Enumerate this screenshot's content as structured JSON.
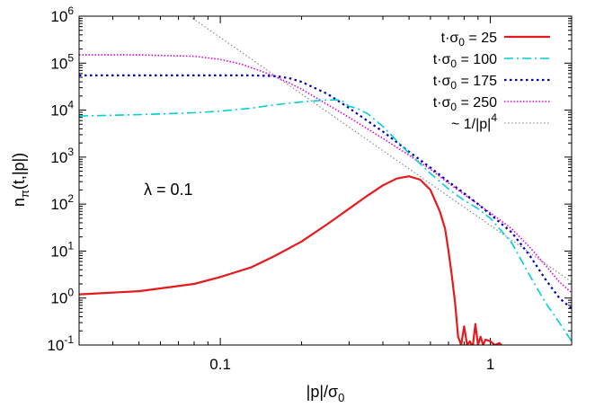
{
  "chart_data": {
    "type": "line",
    "xscale": "log",
    "yscale": "log",
    "xlim": [
      0.03,
      2.0
    ],
    "ylim": [
      0.1,
      1000000
    ],
    "xlabel": {
      "base": "|p|/σ",
      "sub": "0"
    },
    "ylabel": {
      "base": "n",
      "sub": "π",
      "rest": "(t,|p|)"
    },
    "x_ticks": [
      {
        "value": 0.1,
        "label": "0.1"
      },
      {
        "value": 1,
        "label": "1"
      }
    ],
    "y_ticks": [
      {
        "value": 0.1,
        "base": "10",
        "exp": "-1"
      },
      {
        "value": 1,
        "base": "10",
        "exp": "0"
      },
      {
        "value": 10,
        "base": "10",
        "exp": "1"
      },
      {
        "value": 100,
        "base": "10",
        "exp": "2"
      },
      {
        "value": 1000,
        "base": "10",
        "exp": "3"
      },
      {
        "value": 10000,
        "base": "10",
        "exp": "4"
      },
      {
        "value": 100000,
        "base": "10",
        "exp": "5"
      },
      {
        "value": 1000000,
        "base": "10",
        "exp": "6"
      }
    ],
    "annotation": "λ = 0.1",
    "legend_position": "top-right",
    "grid": false,
    "series": [
      {
        "legend": {
          "pre": "t·σ",
          "sub": "0",
          "post": " = 25"
        },
        "color": "#e41a1c",
        "style": "solid",
        "x": [
          0.03,
          0.05,
          0.08,
          0.1,
          0.13,
          0.16,
          0.2,
          0.25,
          0.3,
          0.35,
          0.4,
          0.45,
          0.5,
          0.55,
          0.6,
          0.65,
          0.68,
          0.7,
          0.72,
          0.74,
          0.76,
          0.78,
          0.8,
          0.82,
          0.84,
          0.86,
          0.88,
          0.9,
          0.92,
          0.94,
          0.96,
          1.0,
          1.04,
          1.08,
          1.1
        ],
        "y": [
          1.2,
          1.4,
          2.0,
          2.8,
          4.5,
          8,
          16,
          38,
          80,
          150,
          250,
          350,
          390,
          330,
          200,
          70,
          30,
          10,
          3,
          0.8,
          0.15,
          0.1,
          0.25,
          0.1,
          0.12,
          0.09,
          0.28,
          0.1,
          0.15,
          0.1,
          0.13,
          0.12,
          0.1,
          0.11,
          0.1
        ]
      },
      {
        "legend": {
          "pre": "t·σ",
          "sub": "0",
          "post": " = 100"
        },
        "color": "#00cfd6",
        "style": "dashdot",
        "x": [
          0.03,
          0.05,
          0.08,
          0.1,
          0.13,
          0.16,
          0.2,
          0.25,
          0.28,
          0.3,
          0.32,
          0.35,
          0.4,
          0.5,
          0.6,
          0.7,
          0.8,
          0.9,
          1.0,
          1.2,
          1.4,
          1.6,
          1.8,
          2.0
        ],
        "y": [
          7500,
          8000,
          8800,
          9500,
          11000,
          13000,
          15000,
          16500,
          16500,
          12000,
          11000,
          8500,
          4500,
          1200,
          450,
          210,
          120,
          80,
          50,
          15,
          3,
          0.8,
          0.3,
          0.12
        ]
      },
      {
        "legend": {
          "pre": "t·σ",
          "sub": "0",
          "post": " = 175"
        },
        "color": "#0000b4",
        "style": "dotted",
        "x": [
          0.03,
          0.05,
          0.08,
          0.1,
          0.13,
          0.16,
          0.18,
          0.2,
          0.25,
          0.3,
          0.4,
          0.5,
          0.6,
          0.7,
          0.8,
          0.9,
          1.0,
          1.2,
          1.4,
          1.6,
          1.8,
          2.0
        ],
        "y": [
          55000,
          55000,
          55000,
          55000,
          55000,
          53000,
          48000,
          40000,
          22000,
          11000,
          3500,
          1300,
          600,
          300,
          170,
          100,
          60,
          25,
          8,
          2.5,
          1.0,
          0.6
        ]
      },
      {
        "legend": {
          "pre": "t·σ",
          "sub": "0",
          "post": " = 250"
        },
        "color": "#e000e0",
        "style": "dotted-fine",
        "x": [
          0.03,
          0.05,
          0.08,
          0.1,
          0.12,
          0.15,
          0.18,
          0.2,
          0.25,
          0.3,
          0.4,
          0.5,
          0.6,
          0.7,
          0.8,
          0.9,
          1.0,
          1.2,
          1.4,
          1.6,
          1.8,
          2.0
        ],
        "y": [
          150000,
          150000,
          140000,
          120000,
          95000,
          60000,
          38000,
          28000,
          13000,
          7000,
          2500,
          1100,
          550,
          280,
          160,
          100,
          65,
          30,
          12,
          5,
          2.2,
          1.3
        ]
      },
      {
        "legend": {
          "pre": "~ 1/|p|",
          "sup": "4"
        },
        "color": "#808080",
        "style": "fine-dot",
        "x": [
          0.077,
          2.0
        ],
        "y": [
          1000000,
          2.2
        ]
      }
    ]
  }
}
